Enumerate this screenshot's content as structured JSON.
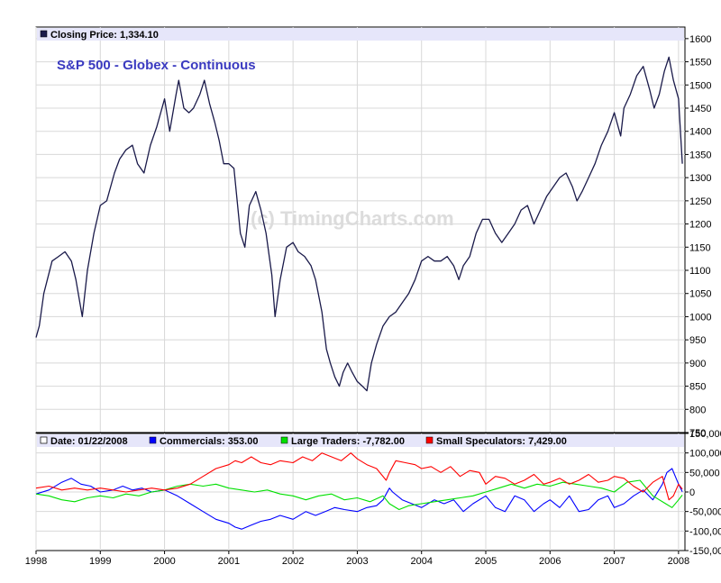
{
  "colors": {
    "price_line": "#1a1a4a",
    "commercials": "#0000ff",
    "large_traders": "#00e000",
    "small_speculators": "#ff0000",
    "header_bg": "#e6e6fa",
    "title": "#3a3ac0",
    "grid": "#d8d8d8"
  },
  "price_panel": {
    "header_label": "Closing Price: 1,334.10",
    "title": "S&P 500 - Globex - Continuous",
    "watermark": "(c) TimingCharts.com"
  },
  "cot_panel": {
    "date_label": "Date: 01/22/2008",
    "commercials_label": "Commercials: 353.00",
    "large_traders_label": "Large Traders: -7,782.00",
    "small_speculators_label": "Small Speculators: 7,429.00"
  },
  "chart_data": [
    {
      "type": "line",
      "title": "S&P 500 - Globex - Continuous",
      "xlabel": "",
      "ylabel": "",
      "xlim": [
        1998.0,
        2008.1
      ],
      "ylim": [
        750,
        1625
      ],
      "y_ticks": [
        750,
        800,
        850,
        900,
        950,
        1000,
        1050,
        1100,
        1150,
        1200,
        1250,
        1300,
        1350,
        1400,
        1450,
        1500,
        1550,
        1600
      ],
      "x_ticks": [
        "1998",
        "1999",
        "2000",
        "2001",
        "2002",
        "2003",
        "2004",
        "2005",
        "2006",
        "2007",
        "2008"
      ],
      "grid": true,
      "series": [
        {
          "name": "Closing Price",
          "x": [
            1998.0,
            1998.05,
            1998.12,
            1998.25,
            1998.35,
            1998.45,
            1998.55,
            1998.62,
            1998.72,
            1998.8,
            1998.9,
            1999.0,
            1999.1,
            1999.22,
            1999.3,
            1999.4,
            1999.5,
            1999.58,
            1999.68,
            1999.78,
            1999.88,
            2000.0,
            2000.08,
            2000.18,
            2000.22,
            2000.3,
            2000.38,
            2000.45,
            2000.55,
            2000.62,
            2000.7,
            2000.78,
            2000.85,
            2000.92,
            2001.0,
            2001.08,
            2001.18,
            2001.25,
            2001.32,
            2001.42,
            2001.5,
            2001.58,
            2001.67,
            2001.72,
            2001.8,
            2001.9,
            2002.0,
            2002.08,
            2002.18,
            2002.28,
            2002.35,
            2002.45,
            2002.52,
            2002.58,
            2002.65,
            2002.72,
            2002.78,
            2002.85,
            2002.92,
            2003.0,
            2003.08,
            2003.15,
            2003.22,
            2003.3,
            2003.4,
            2003.5,
            2003.6,
            2003.7,
            2003.8,
            2003.9,
            2004.0,
            2004.1,
            2004.2,
            2004.3,
            2004.4,
            2004.5,
            2004.58,
            2004.65,
            2004.75,
            2004.85,
            2004.95,
            2005.05,
            2005.15,
            2005.25,
            2005.35,
            2005.45,
            2005.55,
            2005.65,
            2005.75,
            2005.85,
            2005.95,
            2006.05,
            2006.15,
            2006.25,
            2006.35,
            2006.42,
            2006.5,
            2006.6,
            2006.7,
            2006.8,
            2006.9,
            2007.0,
            2007.1,
            2007.15,
            2007.25,
            2007.35,
            2007.45,
            2007.55,
            2007.62,
            2007.7,
            2007.78,
            2007.85,
            2007.92,
            2008.0,
            2008.06
          ],
          "y": [
            955,
            980,
            1050,
            1120,
            1130,
            1140,
            1120,
            1080,
            1000,
            1100,
            1180,
            1240,
            1250,
            1310,
            1340,
            1360,
            1370,
            1330,
            1310,
            1370,
            1410,
            1470,
            1400,
            1480,
            1510,
            1450,
            1440,
            1450,
            1480,
            1510,
            1460,
            1420,
            1380,
            1330,
            1330,
            1320,
            1180,
            1150,
            1240,
            1270,
            1230,
            1180,
            1090,
            1000,
            1080,
            1150,
            1160,
            1140,
            1130,
            1110,
            1080,
            1010,
            930,
            900,
            870,
            850,
            880,
            900,
            880,
            860,
            850,
            840,
            900,
            940,
            980,
            1000,
            1010,
            1030,
            1050,
            1080,
            1120,
            1130,
            1120,
            1120,
            1130,
            1110,
            1080,
            1110,
            1130,
            1180,
            1210,
            1210,
            1180,
            1160,
            1180,
            1200,
            1230,
            1240,
            1200,
            1230,
            1260,
            1280,
            1300,
            1310,
            1280,
            1250,
            1270,
            1300,
            1330,
            1370,
            1400,
            1440,
            1390,
            1450,
            1480,
            1520,
            1540,
            1490,
            1450,
            1480,
            1530,
            1560,
            1510,
            1470,
            1330
          ]
        }
      ]
    },
    {
      "type": "line",
      "title": "",
      "xlabel": "",
      "ylabel": "",
      "xlim": [
        1998.0,
        2008.1
      ],
      "ylim": [
        -150000,
        150000
      ],
      "y_ticks": [
        -150000,
        -100000,
        -50000,
        0,
        50000,
        100000,
        150000
      ],
      "y_tick_labels": [
        "-150,000",
        "-100,000",
        "-50,000",
        "0",
        "50,000",
        "100,000",
        "150,000"
      ],
      "x_ticks": [
        "1998",
        "1999",
        "2000",
        "2001",
        "2002",
        "2003",
        "2004",
        "2005",
        "2006",
        "2007",
        "2008"
      ],
      "grid": true,
      "series": [
        {
          "name": "Commercials",
          "x": [
            1998.0,
            1998.2,
            1998.4,
            1998.55,
            1998.7,
            1998.85,
            1999.0,
            1999.2,
            1999.35,
            1999.5,
            1999.65,
            1999.8,
            2000.0,
            2000.2,
            2000.4,
            2000.6,
            2000.8,
            2001.0,
            2001.1,
            2001.2,
            2001.35,
            2001.5,
            2001.65,
            2001.8,
            2002.0,
            2002.2,
            2002.35,
            2002.5,
            2002.65,
            2002.8,
            2003.0,
            2003.15,
            2003.3,
            2003.4,
            2003.5,
            2003.55,
            2003.7,
            2003.85,
            2004.0,
            2004.2,
            2004.35,
            2004.5,
            2004.65,
            2004.8,
            2005.0,
            2005.15,
            2005.3,
            2005.45,
            2005.6,
            2005.75,
            2005.9,
            2006.0,
            2006.15,
            2006.3,
            2006.45,
            2006.6,
            2006.75,
            2006.9,
            2007.0,
            2007.15,
            2007.3,
            2007.45,
            2007.6,
            2007.75,
            2007.82,
            2007.9,
            2008.0,
            2008.06
          ],
          "y": [
            -5000,
            5000,
            25000,
            35000,
            20000,
            15000,
            0,
            5000,
            15000,
            5000,
            10000,
            0,
            5000,
            -10000,
            -30000,
            -50000,
            -70000,
            -80000,
            -90000,
            -95000,
            -85000,
            -75000,
            -70000,
            -60000,
            -70000,
            -50000,
            -60000,
            -50000,
            -40000,
            -45000,
            -50000,
            -40000,
            -35000,
            -20000,
            10000,
            0,
            -20000,
            -30000,
            -40000,
            -20000,
            -30000,
            -20000,
            -50000,
            -30000,
            -10000,
            -40000,
            -50000,
            -10000,
            -20000,
            -50000,
            -30000,
            -20000,
            -40000,
            -10000,
            -50000,
            -45000,
            -20000,
            -10000,
            -40000,
            -30000,
            -10000,
            5000,
            -20000,
            20000,
            50000,
            60000,
            20000,
            353
          ]
        },
        {
          "name": "Large Traders",
          "x": [
            1998.0,
            1998.2,
            1998.4,
            1998.6,
            1998.8,
            1999.0,
            1999.2,
            1999.4,
            1999.6,
            1999.8,
            2000.0,
            2000.2,
            2000.4,
            2000.6,
            2000.8,
            2001.0,
            2001.2,
            2001.4,
            2001.6,
            2001.8,
            2002.0,
            2002.2,
            2002.4,
            2002.6,
            2002.8,
            2003.0,
            2003.2,
            2003.4,
            2003.5,
            2003.65,
            2003.8,
            2004.0,
            2004.2,
            2004.4,
            2004.6,
            2004.8,
            2005.0,
            2005.2,
            2005.4,
            2005.6,
            2005.8,
            2006.0,
            2006.2,
            2006.4,
            2006.6,
            2006.8,
            2007.0,
            2007.2,
            2007.4,
            2007.6,
            2007.8,
            2007.9,
            2008.0,
            2008.06
          ],
          "y": [
            -5000,
            -10000,
            -20000,
            -25000,
            -15000,
            -10000,
            -15000,
            -5000,
            -10000,
            0,
            5000,
            15000,
            20000,
            15000,
            20000,
            10000,
            5000,
            0,
            5000,
            -5000,
            -10000,
            -20000,
            -10000,
            -5000,
            -20000,
            -15000,
            -25000,
            -10000,
            -30000,
            -45000,
            -35000,
            -30000,
            -25000,
            -20000,
            -15000,
            -10000,
            0,
            10000,
            20000,
            10000,
            20000,
            15000,
            25000,
            20000,
            15000,
            10000,
            0,
            25000,
            30000,
            -10000,
            -30000,
            -40000,
            -20000,
            -7782
          ]
        },
        {
          "name": "Small Speculators",
          "x": [
            1998.0,
            1998.2,
            1998.4,
            1998.6,
            1998.8,
            1999.0,
            1999.2,
            1999.4,
            1999.6,
            1999.8,
            2000.0,
            2000.2,
            2000.4,
            2000.6,
            2000.8,
            2001.0,
            2001.1,
            2001.2,
            2001.35,
            2001.5,
            2001.65,
            2001.8,
            2002.0,
            2002.15,
            2002.3,
            2002.45,
            2002.6,
            2002.75,
            2002.9,
            2003.0,
            2003.15,
            2003.3,
            2003.45,
            2003.5,
            2003.6,
            2003.75,
            2003.9,
            2004.0,
            2004.15,
            2004.3,
            2004.45,
            2004.6,
            2004.75,
            2004.9,
            2005.0,
            2005.15,
            2005.3,
            2005.45,
            2005.6,
            2005.75,
            2005.9,
            2006.0,
            2006.15,
            2006.3,
            2006.45,
            2006.6,
            2006.75,
            2006.9,
            2007.0,
            2007.15,
            2007.3,
            2007.45,
            2007.6,
            2007.75,
            2007.85,
            2007.92,
            2008.0,
            2008.06
          ],
          "y": [
            10000,
            15000,
            5000,
            10000,
            5000,
            10000,
            5000,
            0,
            5000,
            10000,
            5000,
            10000,
            20000,
            40000,
            60000,
            70000,
            80000,
            75000,
            90000,
            75000,
            70000,
            80000,
            75000,
            90000,
            80000,
            100000,
            90000,
            80000,
            100000,
            85000,
            70000,
            60000,
            30000,
            50000,
            80000,
            75000,
            70000,
            60000,
            65000,
            50000,
            65000,
            40000,
            55000,
            50000,
            20000,
            40000,
            35000,
            20000,
            30000,
            45000,
            20000,
            25000,
            35000,
            20000,
            30000,
            45000,
            25000,
            30000,
            40000,
            35000,
            15000,
            0,
            25000,
            40000,
            -20000,
            -10000,
            20000,
            7429
          ]
        }
      ]
    }
  ]
}
